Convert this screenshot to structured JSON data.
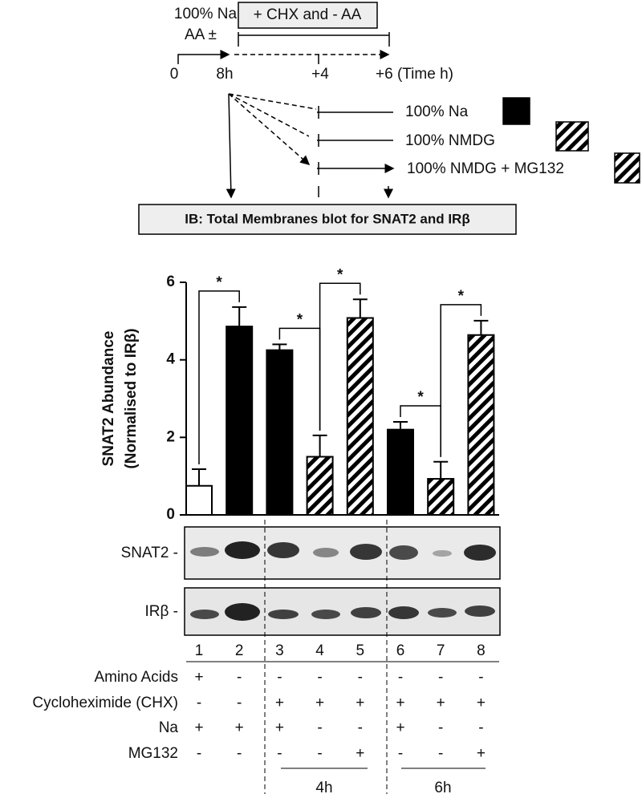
{
  "chart_data": {
    "type": "bar",
    "y_label": [
      "SNAT2 Abundance",
      "(Normalised to IRβ)"
    ],
    "categories": [
      "1",
      "2",
      "3",
      "4",
      "5",
      "6",
      "7",
      "8"
    ],
    "values": [
      0.75,
      4.86,
      4.25,
      1.5,
      5.08,
      2.2,
      0.93,
      4.64
    ],
    "errors": [
      0.43,
      0.5,
      0.15,
      0.55,
      0.48,
      0.2,
      0.44,
      0.37
    ],
    "fills": [
      "white",
      "black",
      "black",
      "hatch",
      "hatch",
      "black",
      "hatch",
      "hatch"
    ],
    "ylim": [
      0,
      6
    ],
    "yticks": [
      0,
      2,
      4,
      6
    ],
    "significance": [
      {
        "from": 0,
        "to": 1,
        "label": "*"
      },
      {
        "from": 2,
        "to": 3,
        "label": "*"
      },
      {
        "from": 3,
        "to": 4,
        "label": "*"
      },
      {
        "from": 5,
        "to": 6,
        "label": "*"
      },
      {
        "from": 6,
        "to": 7,
        "label": "*"
      }
    ]
  },
  "diagram": {
    "pre_label": "100% Na",
    "aa_label": "AA ±",
    "treatment_box": "+ CHX and - AA",
    "time_labels": [
      "0",
      "8h",
      "+4",
      "+6 (Time h)"
    ],
    "conditions": [
      "100% Na",
      "100% NMDG",
      "100% NMDG + MG132"
    ],
    "blot_box": "IB: Total Membranes blot for SNAT2 and IRβ"
  },
  "blots": {
    "rows": [
      "SNAT2 -",
      "IRβ -"
    ]
  },
  "table": {
    "rows": [
      {
        "label": "Amino Acids",
        "cells": [
          "+",
          "-",
          "-",
          "-",
          "-",
          "-",
          "-",
          "-"
        ]
      },
      {
        "label": "Cycloheximide (CHX)",
        "cells": [
          "-",
          "-",
          "+",
          "+",
          "+",
          "+",
          "+",
          "+"
        ]
      },
      {
        "label": "Na",
        "cells": [
          "+",
          "+",
          "+",
          "-",
          "-",
          "+",
          "-",
          "-"
        ]
      },
      {
        "label": "MG132",
        "cells": [
          "-",
          "-",
          "-",
          "-",
          "+",
          "-",
          "-",
          "+"
        ]
      }
    ],
    "time_groups": [
      "4h",
      "6h"
    ]
  }
}
